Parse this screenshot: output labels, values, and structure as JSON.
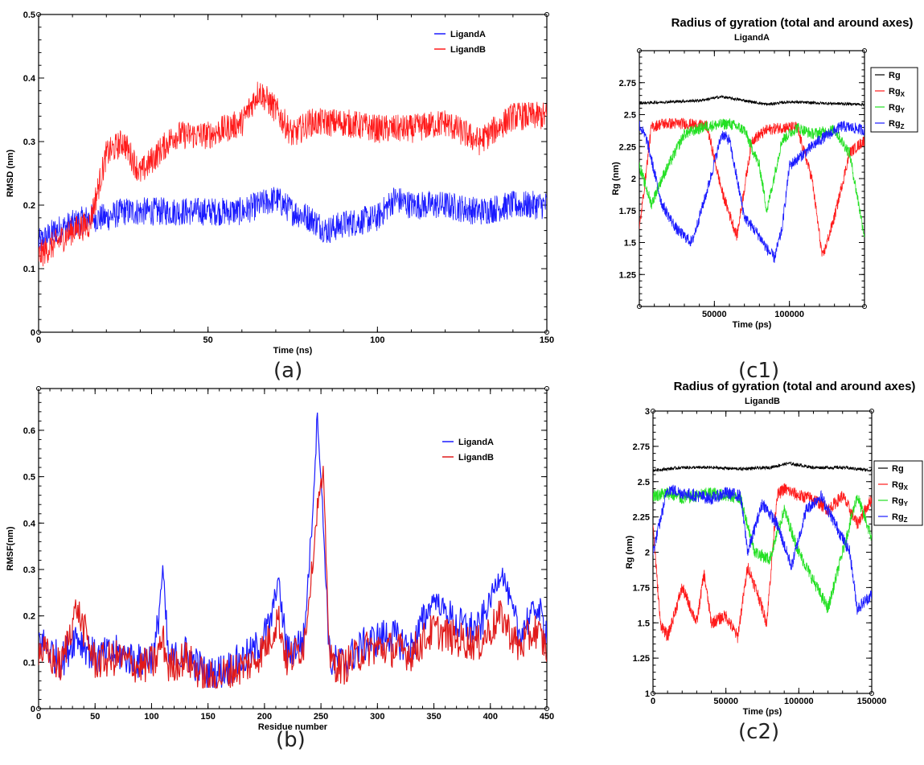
{
  "captions": {
    "a": "(a)",
    "b": "(b)",
    "c1": "(c1)",
    "c2": "(c2)"
  },
  "colors": {
    "blue": "#1a1aff",
    "red": "#ff1a1a",
    "green": "#22e022",
    "black": "#000000"
  },
  "chart_data": [
    {
      "id": "a",
      "type": "line",
      "title": "",
      "xlabel": "Time (ns)",
      "ylabel": "RMSD (nm)",
      "xlim": [
        0,
        150
      ],
      "ylim": [
        0,
        0.5
      ],
      "xticks": [
        "0",
        "50",
        "100",
        "150"
      ],
      "yticks": [
        "0",
        "0.1",
        "0.2",
        "0.3",
        "0.4",
        "0.5"
      ],
      "legend": "top-right",
      "series": [
        {
          "name": "LigandA",
          "color": "#1a1aff",
          "x": [
            0,
            5,
            10,
            15,
            20,
            25,
            30,
            40,
            50,
            60,
            70,
            75,
            80,
            85,
            90,
            100,
            105,
            110,
            120,
            130,
            140,
            150
          ],
          "y": [
            0.14,
            0.16,
            0.17,
            0.18,
            0.18,
            0.19,
            0.19,
            0.19,
            0.19,
            0.19,
            0.21,
            0.19,
            0.18,
            0.16,
            0.17,
            0.18,
            0.21,
            0.2,
            0.2,
            0.19,
            0.2,
            0.2
          ]
        },
        {
          "name": "LigandB",
          "color": "#ff1a1a",
          "x": [
            0,
            5,
            10,
            15,
            20,
            25,
            30,
            35,
            40,
            50,
            60,
            65,
            70,
            75,
            80,
            90,
            100,
            110,
            120,
            130,
            140,
            150
          ],
          "y": [
            0.12,
            0.14,
            0.16,
            0.17,
            0.28,
            0.3,
            0.25,
            0.28,
            0.31,
            0.31,
            0.33,
            0.38,
            0.35,
            0.31,
            0.33,
            0.33,
            0.32,
            0.32,
            0.33,
            0.3,
            0.34,
            0.34
          ]
        }
      ]
    },
    {
      "id": "b",
      "type": "line",
      "title": "",
      "xlabel": "Residue number",
      "ylabel": "RMSF(nm)",
      "xlim": [
        0,
        450
      ],
      "ylim": [
        0,
        0.69
      ],
      "xticks": [
        "0",
        "50",
        "100",
        "150",
        "200",
        "250",
        "300",
        "350",
        "400",
        "450"
      ],
      "yticks": [
        "0",
        "0.1",
        "0.2",
        "0.3",
        "0.4",
        "0.5",
        "0.6"
      ],
      "legend": "top-right",
      "series": [
        {
          "name": "LigandA",
          "color": "#1a1aff",
          "x": [
            0,
            20,
            33,
            50,
            70,
            90,
            103,
            110,
            115,
            130,
            150,
            170,
            190,
            205,
            212,
            220,
            235,
            242,
            247,
            252,
            258,
            270,
            290,
            310,
            330,
            350,
            370,
            390,
            410,
            425,
            440,
            450
          ],
          "y": [
            0.15,
            0.1,
            0.16,
            0.11,
            0.12,
            0.1,
            0.12,
            0.3,
            0.1,
            0.12,
            0.07,
            0.09,
            0.12,
            0.18,
            0.28,
            0.12,
            0.15,
            0.4,
            0.64,
            0.4,
            0.1,
            0.1,
            0.14,
            0.16,
            0.13,
            0.24,
            0.18,
            0.17,
            0.3,
            0.16,
            0.22,
            0.17
          ]
        },
        {
          "name": "LigandB",
          "color": "#e01a1a",
          "x": [
            0,
            20,
            33,
            50,
            70,
            90,
            103,
            110,
            115,
            130,
            150,
            170,
            190,
            205,
            212,
            220,
            235,
            242,
            247,
            252,
            258,
            270,
            290,
            310,
            330,
            350,
            370,
            390,
            410,
            425,
            440,
            450
          ],
          "y": [
            0.13,
            0.09,
            0.22,
            0.1,
            0.11,
            0.09,
            0.1,
            0.15,
            0.09,
            0.11,
            0.06,
            0.08,
            0.1,
            0.15,
            0.2,
            0.1,
            0.14,
            0.3,
            0.44,
            0.5,
            0.1,
            0.09,
            0.13,
            0.13,
            0.12,
            0.17,
            0.15,
            0.14,
            0.2,
            0.13,
            0.17,
            0.13
          ]
        }
      ]
    },
    {
      "id": "c1",
      "type": "line",
      "title": "Radius of gyration (total and around axes)",
      "subtitle": "LigandA",
      "xlabel": "Time (ps)",
      "ylabel": "Rg (nm)",
      "xlim": [
        0,
        150000
      ],
      "ylim": [
        1.0,
        3.0
      ],
      "xticks": [
        "50000",
        "100000"
      ],
      "yticks": [
        "1.25",
        "1.5",
        "1.75",
        "2",
        "2.25",
        "2.5",
        "2.75"
      ],
      "legend": "right",
      "series": [
        {
          "name": "Rg",
          "sub": "",
          "color": "#000000",
          "x": [
            0,
            20000,
            40000,
            55000,
            70000,
            85000,
            100000,
            120000,
            150000
          ],
          "y": [
            2.59,
            2.6,
            2.61,
            2.64,
            2.61,
            2.58,
            2.6,
            2.59,
            2.58
          ]
        },
        {
          "name": "Rg",
          "sub": "X",
          "color": "#ff1a1a",
          "x": [
            0,
            8000,
            15000,
            30000,
            45000,
            55000,
            65000,
            75000,
            85000,
            95000,
            105000,
            115000,
            122000,
            130000,
            140000,
            150000
          ],
          "y": [
            1.6,
            2.4,
            2.43,
            2.43,
            2.41,
            1.9,
            1.55,
            2.3,
            2.38,
            2.4,
            2.4,
            2.0,
            1.38,
            1.7,
            2.2,
            2.3
          ]
        },
        {
          "name": "Rg",
          "sub": "Y",
          "color": "#22e022",
          "x": [
            0,
            8000,
            15000,
            30000,
            45000,
            60000,
            70000,
            80000,
            85000,
            95000,
            105000,
            115000,
            130000,
            140000,
            150000
          ],
          "y": [
            2.1,
            1.8,
            2.0,
            2.35,
            2.41,
            2.43,
            2.38,
            2.1,
            1.75,
            2.3,
            2.4,
            2.35,
            2.38,
            2.2,
            1.55
          ]
        },
        {
          "name": "Rg",
          "sub": "Z",
          "color": "#1a1aff",
          "x": [
            0,
            5000,
            15000,
            25000,
            35000,
            45000,
            55000,
            60000,
            70000,
            80000,
            85000,
            90000,
            95000,
            100000,
            110000,
            120000,
            135000,
            150000
          ],
          "y": [
            2.42,
            2.3,
            1.8,
            1.6,
            1.5,
            1.9,
            2.35,
            2.3,
            1.7,
            1.55,
            1.45,
            1.38,
            1.6,
            2.1,
            2.2,
            2.3,
            2.41,
            2.38
          ]
        }
      ]
    },
    {
      "id": "c2",
      "type": "line",
      "title": "Radius of gyration (total and around axes)",
      "subtitle": "LigandB",
      "xlabel": "Time (ps)",
      "ylabel": "Rg (nm)",
      "xlim": [
        0,
        150000
      ],
      "ylim": [
        1.0,
        3.0
      ],
      "xticks": [
        "0",
        "50000",
        "100000",
        "150000"
      ],
      "yticks": [
        "1",
        "1.25",
        "1.5",
        "1.75",
        "2",
        "2.25",
        "2.5",
        "2.75",
        "3"
      ],
      "legend": "right",
      "series": [
        {
          "name": "Rg",
          "sub": "",
          "color": "#000000",
          "x": [
            0,
            20000,
            40000,
            60000,
            80000,
            93000,
            110000,
            130000,
            150000
          ],
          "y": [
            2.58,
            2.6,
            2.6,
            2.59,
            2.6,
            2.63,
            2.6,
            2.6,
            2.58
          ]
        },
        {
          "name": "Rg",
          "sub": "X",
          "color": "#ff1a1a",
          "x": [
            0,
            5000,
            10000,
            20000,
            30000,
            35000,
            40000,
            50000,
            58000,
            65000,
            72000,
            78000,
            85000,
            90000,
            100000,
            110000,
            120000,
            130000,
            140000,
            150000
          ],
          "y": [
            2.2,
            1.5,
            1.4,
            1.75,
            1.5,
            1.85,
            1.5,
            1.55,
            1.4,
            1.9,
            1.7,
            1.5,
            2.4,
            2.45,
            2.4,
            2.38,
            2.3,
            2.4,
            2.2,
            2.38
          ]
        },
        {
          "name": "Rg",
          "sub": "Y",
          "color": "#22e022",
          "x": [
            0,
            10000,
            20000,
            30000,
            40000,
            50000,
            60000,
            70000,
            80000,
            90000,
            100000,
            110000,
            120000,
            130000,
            140000,
            150000
          ],
          "y": [
            2.4,
            2.42,
            2.38,
            2.4,
            2.42,
            2.4,
            2.38,
            2.0,
            1.95,
            2.3,
            2.0,
            1.8,
            1.6,
            2.0,
            2.4,
            2.1
          ]
        },
        {
          "name": "Rg",
          "sub": "Z",
          "color": "#1a1aff",
          "x": [
            0,
            10000,
            20000,
            30000,
            40000,
            50000,
            60000,
            65000,
            75000,
            85000,
            95000,
            105000,
            115000,
            125000,
            135000,
            140000,
            150000
          ],
          "y": [
            2.0,
            2.45,
            2.42,
            2.4,
            2.38,
            2.42,
            2.4,
            2.0,
            2.35,
            2.2,
            1.9,
            2.3,
            2.4,
            2.2,
            2.0,
            1.6,
            1.7
          ]
        }
      ]
    }
  ]
}
